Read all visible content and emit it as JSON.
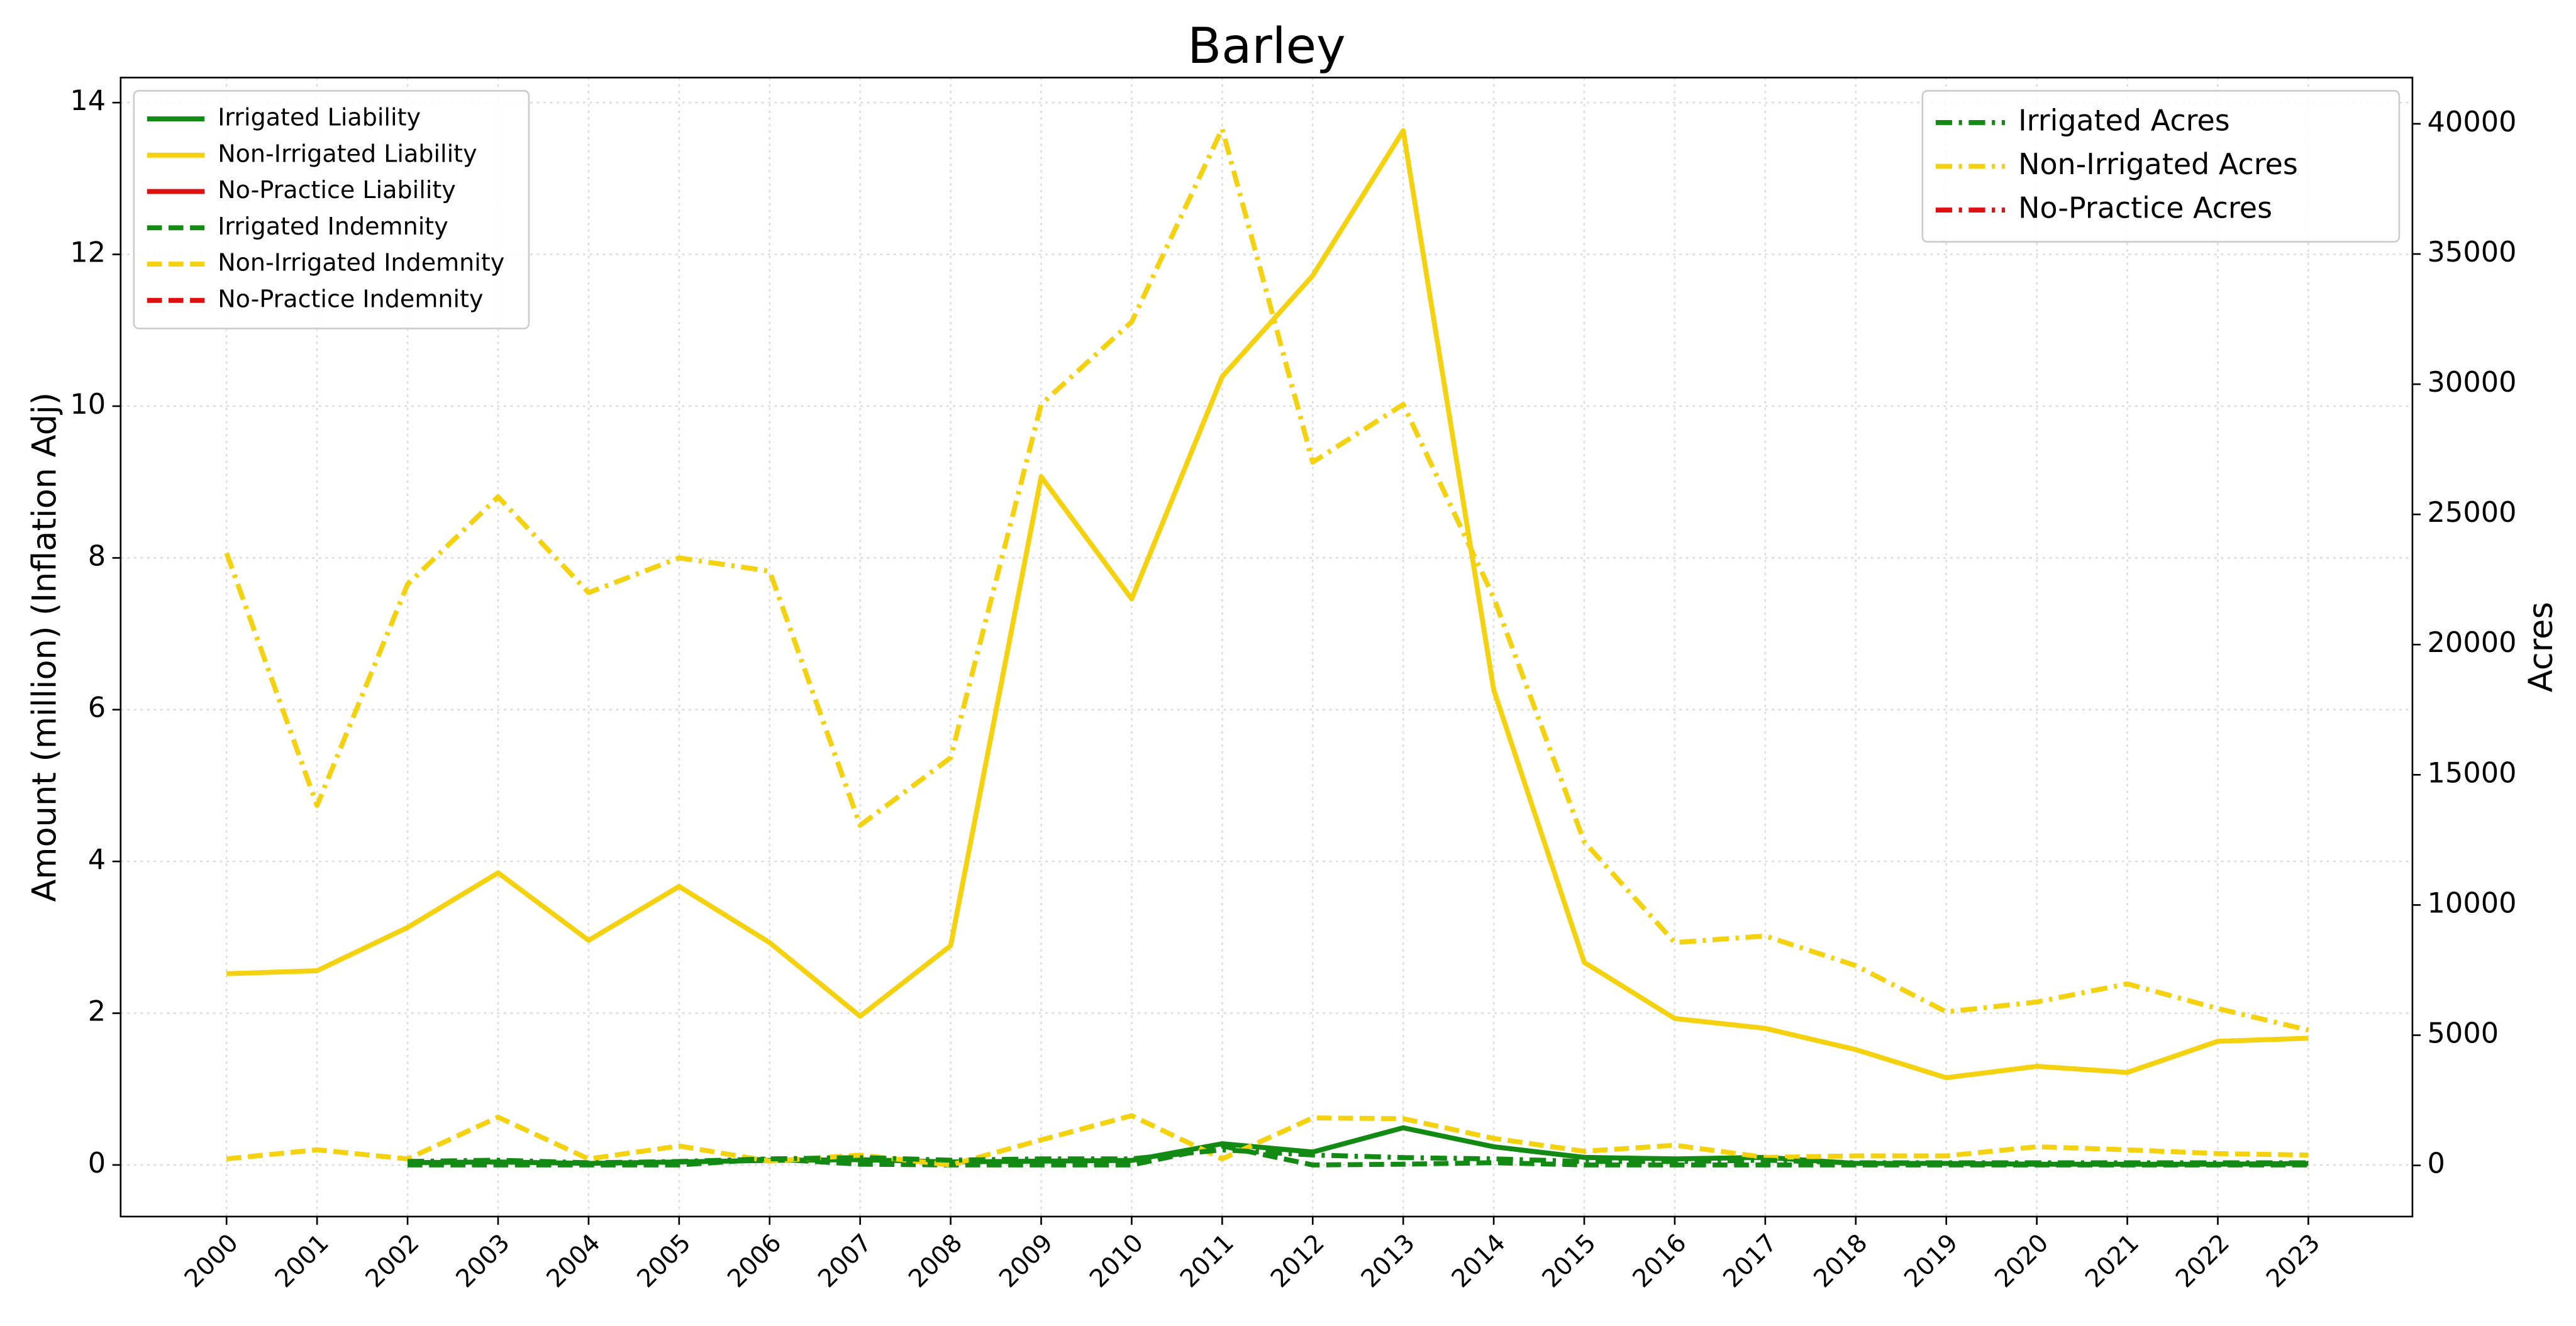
{
  "chart_data": {
    "type": "line",
    "title": "Barley",
    "ylabel": "Amount (million) (Inflation Adj)",
    "y2label": "Acres",
    "x": [
      2000,
      2001,
      2002,
      2003,
      2004,
      2005,
      2006,
      2007,
      2008,
      2009,
      2010,
      2011,
      2012,
      2013,
      2014,
      2015,
      2016,
      2017,
      2018,
      2019,
      2020,
      2021,
      2022,
      2023
    ],
    "xlim": [
      1998.83,
      2024.15
    ],
    "xticks": [
      2000,
      2001,
      2002,
      2003,
      2004,
      2005,
      2006,
      2007,
      2008,
      2009,
      2010,
      2011,
      2012,
      2013,
      2014,
      2015,
      2016,
      2017,
      2018,
      2019,
      2020,
      2021,
      2022,
      2023
    ],
    "ylim": [
      -0.68,
      14.33
    ],
    "yticks": [
      0,
      2,
      4,
      6,
      8,
      10,
      12,
      14
    ],
    "y2lim": [
      -1965,
      41775
    ],
    "y2ticks": [
      0,
      5000,
      10000,
      15000,
      20000,
      25000,
      30000,
      35000,
      40000
    ],
    "grid": true,
    "legend": "upper left",
    "legend2": "upper right",
    "series": [
      {
        "name": "Irrigated Liability",
        "color": "#138a13",
        "linestyle": "solid",
        "axis": "y",
        "values": [
          null,
          null,
          0.03,
          0.04,
          0.02,
          0.04,
          0.06,
          0.07,
          0.04,
          0.05,
          0.06,
          0.28,
          0.17,
          0.49,
          0.24,
          0.1,
          0.08,
          0.1,
          0.02,
          0.02,
          0.01,
          0.01,
          0.01,
          0.02
        ]
      },
      {
        "name": "Non-Irrigated Liability",
        "color": "#f5d20f",
        "linestyle": "solid",
        "axis": "y",
        "values": [
          2.52,
          2.56,
          3.13,
          3.85,
          2.96,
          3.67,
          2.93,
          1.96,
          2.89,
          9.07,
          7.46,
          10.39,
          11.72,
          13.63,
          6.26,
          2.67,
          1.93,
          1.8,
          1.52,
          1.15,
          1.3,
          1.22,
          1.63,
          1.67
        ]
      },
      {
        "name": "No-Practice Liability",
        "color": "#e01010",
        "linestyle": "solid",
        "axis": "y",
        "values": [
          null,
          null,
          null,
          null,
          null,
          null,
          null,
          null,
          null,
          null,
          null,
          null,
          null,
          null,
          null,
          null,
          null,
          null,
          null,
          null,
          null,
          null,
          null,
          null
        ]
      },
      {
        "name": "Irrigated Indemnity",
        "color": "#138a13",
        "linestyle": "dashed",
        "axis": "y",
        "values": [
          null,
          null,
          0,
          0,
          0,
          0,
          0.08,
          0.01,
          0,
          0,
          0,
          0.25,
          0,
          0.01,
          0.03,
          0,
          0,
          0,
          0,
          0,
          0,
          0,
          0,
          0
        ]
      },
      {
        "name": "Non-Irrigated Indemnity",
        "color": "#f5d20f",
        "linestyle": "dashed",
        "axis": "y",
        "values": [
          0.08,
          0.2,
          0.08,
          0.63,
          0.08,
          0.25,
          0.05,
          0.13,
          0,
          0.33,
          0.65,
          0.08,
          0.62,
          0.61,
          0.35,
          0.18,
          0.26,
          0.1,
          0.12,
          0.12,
          0.24,
          0.2,
          0.15,
          0.13
        ]
      },
      {
        "name": "No-Practice Indemnity",
        "color": "#e01010",
        "linestyle": "dashed",
        "axis": "y",
        "values": [
          null,
          null,
          null,
          null,
          null,
          null,
          null,
          null,
          null,
          null,
          null,
          null,
          null,
          null,
          null,
          null,
          null,
          null,
          null,
          null,
          null,
          null,
          null,
          null
        ]
      },
      {
        "name": "Irrigated Acres",
        "color": "#138a13",
        "linestyle": "dashdot",
        "axis": "y2",
        "values": [
          null,
          null,
          150,
          200,
          100,
          150,
          250,
          300,
          200,
          250,
          250,
          600,
          400,
          300,
          250,
          150,
          150,
          200,
          100,
          100,
          100,
          100,
          100,
          100
        ]
      },
      {
        "name": "Non-Irrigated Acres",
        "color": "#f5d20f",
        "linestyle": "dashdot",
        "axis": "y2",
        "values": [
          23518,
          13820,
          22314,
          25674,
          21997,
          23328,
          22821,
          13059,
          15658,
          29224,
          32393,
          39810,
          27005,
          29224,
          21807,
          12425,
          8558,
          8811,
          7670,
          5895,
          6276,
          6973,
          6022,
          5198
        ]
      },
      {
        "name": "No-Practice Acres",
        "color": "#e01010",
        "linestyle": "dashdot",
        "axis": "y2",
        "values": [
          null,
          null,
          null,
          null,
          null,
          null,
          null,
          null,
          null,
          null,
          null,
          null,
          null,
          null,
          null,
          null,
          null,
          null,
          null,
          null,
          null,
          null,
          null,
          null
        ]
      }
    ]
  }
}
